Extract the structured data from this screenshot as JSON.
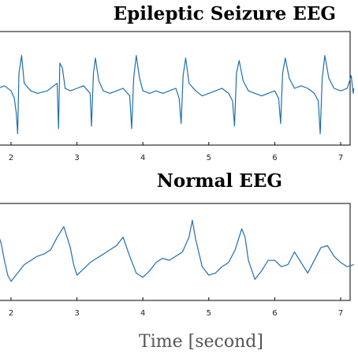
{
  "chart_data": [
    {
      "type": "line",
      "title": "Epileptic Seizure EEG",
      "xlabel": "",
      "ylabel": "",
      "xlim": [
        1.8,
        7.2
      ],
      "ylim": [
        -1,
        1
      ],
      "xticks": [
        "2",
        "3",
        "4",
        "5",
        "6",
        "7"
      ],
      "grid": false,
      "series": [
        {
          "color": "#1f6fb0",
          "x": [
            1.8,
            1.9,
            2.0,
            2.05,
            2.08,
            2.1,
            2.12,
            2.16,
            2.2,
            2.3,
            2.4,
            2.55,
            2.65,
            2.7,
            2.72,
            2.74,
            2.78,
            2.82,
            2.9,
            3.0,
            3.1,
            3.2,
            3.22,
            3.25,
            3.28,
            3.33,
            3.4,
            3.5,
            3.6,
            3.7,
            3.8,
            3.83,
            3.86,
            3.9,
            3.95,
            4.0,
            4.1,
            4.2,
            4.3,
            4.4,
            4.5,
            4.55,
            4.58,
            4.61,
            4.65,
            4.7,
            4.8,
            4.9,
            5.0,
            5.1,
            5.2,
            5.3,
            5.36,
            5.39,
            5.42,
            5.46,
            5.52,
            5.6,
            5.7,
            5.8,
            5.9,
            6.0,
            6.06,
            6.09,
            6.12,
            6.16,
            6.22,
            6.3,
            6.4,
            6.5,
            6.6,
            6.66,
            6.69,
            6.72,
            6.76,
            6.82,
            6.9,
            7.0,
            7.1,
            7.16,
            7.19,
            7.2
          ],
          "y": [
            0.0,
            0.05,
            -0.05,
            -0.2,
            -0.5,
            -0.9,
            0.3,
            0.65,
            0.1,
            -0.05,
            -0.1,
            -0.05,
            0.05,
            0.1,
            -0.8,
            0.5,
            0.4,
            0.0,
            -0.05,
            0.0,
            0.05,
            -0.1,
            -0.75,
            0.3,
            0.6,
            0.15,
            -0.05,
            -0.1,
            -0.05,
            0.0,
            -0.15,
            -0.8,
            0.2,
            0.65,
            0.2,
            -0.05,
            -0.1,
            -0.05,
            -0.1,
            -0.05,
            0.0,
            -0.2,
            -0.7,
            0.25,
            0.6,
            0.1,
            -0.05,
            -0.15,
            -0.1,
            -0.05,
            0.0,
            -0.1,
            -0.25,
            -0.75,
            0.3,
            0.55,
            0.15,
            -0.05,
            -0.1,
            -0.15,
            -0.1,
            -0.05,
            -0.2,
            -0.7,
            0.3,
            0.6,
            0.2,
            0.0,
            0.05,
            0.0,
            -0.1,
            -0.25,
            -0.9,
            0.2,
            0.65,
            0.2,
            0.0,
            -0.05,
            0.0,
            0.25,
            -0.1,
            0.0
          ]
        }
      ]
    },
    {
      "type": "line",
      "title": "Normal EEG",
      "xlabel": "Time [second]",
      "ylabel": "",
      "xlim": [
        1.8,
        7.2
      ],
      "ylim": [
        -1,
        1
      ],
      "xticks": [
        "2",
        "3",
        "4",
        "5",
        "6",
        "7"
      ],
      "grid": false,
      "series": [
        {
          "color": "#1f6fb0",
          "x": [
            1.8,
            1.85,
            1.9,
            1.95,
            2.0,
            2.1,
            2.2,
            2.3,
            2.4,
            2.5,
            2.6,
            2.7,
            2.8,
            2.9,
            2.95,
            3.0,
            3.1,
            3.2,
            3.3,
            3.4,
            3.5,
            3.6,
            3.7,
            3.8,
            3.9,
            4.0,
            4.1,
            4.2,
            4.3,
            4.4,
            4.5,
            4.6,
            4.7,
            4.75,
            4.8,
            4.9,
            5.0,
            5.1,
            5.2,
            5.3,
            5.4,
            5.5,
            5.55,
            5.6,
            5.7,
            5.8,
            5.9,
            6.0,
            6.1,
            6.2,
            6.3,
            6.4,
            6.5,
            6.6,
            6.7,
            6.8,
            6.9,
            7.0,
            7.1,
            7.2
          ],
          "y": [
            0.45,
            0.2,
            -0.2,
            -0.55,
            -0.7,
            -0.5,
            -0.3,
            -0.2,
            -0.1,
            -0.05,
            0.05,
            0.35,
            0.6,
            0.1,
            -0.3,
            -0.55,
            -0.4,
            -0.25,
            -0.15,
            -0.05,
            0.05,
            0.15,
            0.35,
            -0.1,
            -0.5,
            -0.6,
            -0.45,
            -0.25,
            -0.15,
            -0.2,
            -0.1,
            0.0,
            0.35,
            0.75,
            0.3,
            -0.35,
            -0.55,
            -0.5,
            -0.35,
            -0.25,
            0.05,
            0.55,
            0.35,
            -0.2,
            -0.65,
            -0.45,
            -0.2,
            -0.2,
            -0.35,
            -0.3,
            0.0,
            -0.25,
            -0.5,
            -0.2,
            0.1,
            0.15,
            -0.1,
            -0.25,
            -0.35,
            -0.3
          ]
        }
      ]
    }
  ]
}
